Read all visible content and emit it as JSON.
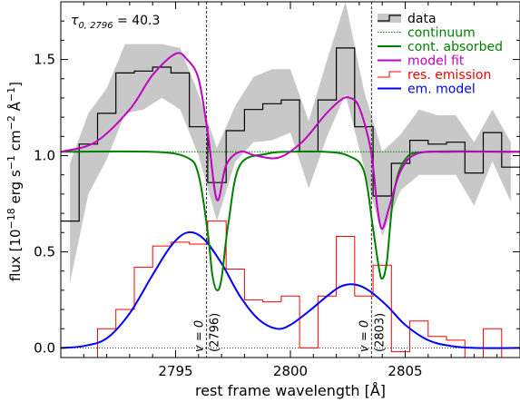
{
  "chart_data": {
    "type": "line",
    "annotation": {
      "text": "τ",
      "sub": "0, 2796",
      "rest": " = 40.3"
    },
    "xlabel": "rest frame wavelength [Å]",
    "ylabel": {
      "prefix": "flux [10",
      "exp1": "−18",
      "mid": " erg s",
      "exp2": "−1",
      "mid2": " cm",
      "exp3": "−2",
      "mid3": " Å",
      "exp4": "−1",
      "suffix": "]"
    },
    "xlim": [
      2790.0,
      2810.0
    ],
    "ylim": [
      -0.05,
      1.8
    ],
    "x_ticks": [
      2795,
      2800,
      2805
    ],
    "y_ticks": [
      0.0,
      0.5,
      1.0,
      1.5
    ],
    "y_tick_labels": [
      "0.0",
      "0.5",
      "1.0",
      "1.5"
    ],
    "x_tick_labels": [
      "2795",
      "2800",
      "2805"
    ],
    "vlines": [
      {
        "x": 2796.35,
        "label": "v = 0",
        "sublabel": "(2796)"
      },
      {
        "x": 2803.53,
        "label": "v = 0",
        "sublabel": "(2803)"
      }
    ],
    "legend": {
      "position": "top-right",
      "entries": [
        {
          "label": "data",
          "color": "#000000"
        },
        {
          "label": "continuum",
          "color": "#008000"
        },
        {
          "label": "cont. absorbed",
          "color": "#008000"
        },
        {
          "label": "model fit",
          "color": "#c000c0"
        },
        {
          "label": "res. emission",
          "color": "#ff0000"
        },
        {
          "label": "em. model",
          "color": "#0000ff"
        }
      ]
    },
    "bin_edges": [
      2790.0,
      2790.8,
      2791.6,
      2792.4,
      2793.2,
      2794.0,
      2794.8,
      2795.6,
      2796.4,
      2797.2,
      2798.0,
      2798.8,
      2799.6,
      2800.4,
      2801.2,
      2802.0,
      2802.8,
      2803.6,
      2804.4,
      2805.2,
      2806.0,
      2806.8,
      2807.6,
      2808.4,
      2809.2,
      2810.0
    ],
    "data_values": [
      0.66,
      1.06,
      1.22,
      1.43,
      1.44,
      1.46,
      1.43,
      1.15,
      0.86,
      1.13,
      1.24,
      1.27,
      1.29,
      1.02,
      1.29,
      1.56,
      1.15,
      0.79,
      0.96,
      1.08,
      1.06,
      1.07,
      0.91,
      1.12,
      0.94
    ],
    "error_upper": [
      0.96,
      1.22,
      1.35,
      1.58,
      1.58,
      1.58,
      1.56,
      1.32,
      1.04,
      1.26,
      1.41,
      1.45,
      1.45,
      1.18,
      1.5,
      1.8,
      1.34,
      1.02,
      1.11,
      1.24,
      1.21,
      1.21,
      1.07,
      1.24,
      1.07
    ],
    "error_lower": [
      0.34,
      0.8,
      0.98,
      1.22,
      1.24,
      1.3,
      1.24,
      1.0,
      0.66,
      0.97,
      1.07,
      1.08,
      1.12,
      0.83,
      1.1,
      1.32,
      0.94,
      0.58,
      0.82,
      0.9,
      0.9,
      0.9,
      0.74,
      0.97,
      0.76
    ],
    "res_emission_values": [
      -0.13,
      -0.11,
      0.1,
      0.2,
      0.42,
      0.53,
      0.55,
      0.54,
      0.66,
      0.41,
      0.25,
      0.24,
      0.27,
      0.0,
      0.27,
      0.58,
      0.27,
      0.43,
      -0.02,
      0.14,
      0.06,
      0.04,
      -0.11,
      0.1,
      -0.08
    ],
    "continuum_level": 1.02,
    "series": [
      {
        "name": "model fit",
        "x": [
          2790.0,
          2791.5,
          2793.0,
          2794.0,
          2795.0,
          2795.5,
          2796.0,
          2796.4,
          2796.8,
          2797.2,
          2797.8,
          2798.5,
          2799.5,
          2800.5,
          2801.5,
          2802.2,
          2802.6,
          2803.0,
          2803.5,
          2803.8,
          2804.0,
          2804.3,
          2804.8,
          2805.5,
          2807.0,
          2810.0
        ],
        "y": [
          1.02,
          1.07,
          1.24,
          1.42,
          1.53,
          1.5,
          1.4,
          1.12,
          0.77,
          0.95,
          1.02,
          1.0,
          0.99,
          1.07,
          1.21,
          1.29,
          1.3,
          1.25,
          1.03,
          0.72,
          0.62,
          0.73,
          0.92,
          1.01,
          1.02,
          1.02
        ]
      },
      {
        "name": "cont. absorbed",
        "x": [
          2790.0,
          2794.0,
          2795.5,
          2796.0,
          2796.4,
          2796.6,
          2796.8,
          2797.0,
          2797.3,
          2797.8,
          2799.0,
          2800.0,
          2801.5,
          2802.5,
          2803.2,
          2803.6,
          2803.85,
          2804.0,
          2804.2,
          2804.5,
          2805.0,
          2806.0,
          2810.0
        ],
        "y": [
          1.02,
          1.02,
          0.99,
          0.9,
          0.6,
          0.38,
          0.3,
          0.36,
          0.65,
          0.95,
          1.01,
          1.02,
          1.02,
          1.0,
          0.92,
          0.62,
          0.42,
          0.36,
          0.45,
          0.8,
          0.98,
          1.02,
          1.02
        ]
      },
      {
        "name": "em. model",
        "x": [
          2790.0,
          2791.0,
          2792.0,
          2793.0,
          2794.0,
          2794.8,
          2795.5,
          2796.2,
          2797.0,
          2797.8,
          2798.6,
          2799.4,
          2800.0,
          2800.8,
          2801.6,
          2802.2,
          2802.8,
          2803.4,
          2804.2,
          2805.0,
          2806.0,
          2807.0,
          2808.0,
          2810.0
        ],
        "y": [
          0.0,
          0.01,
          0.05,
          0.18,
          0.38,
          0.53,
          0.6,
          0.57,
          0.44,
          0.27,
          0.15,
          0.1,
          0.12,
          0.19,
          0.27,
          0.32,
          0.33,
          0.3,
          0.22,
          0.12,
          0.04,
          0.01,
          0.0,
          0.0
        ]
      }
    ]
  }
}
